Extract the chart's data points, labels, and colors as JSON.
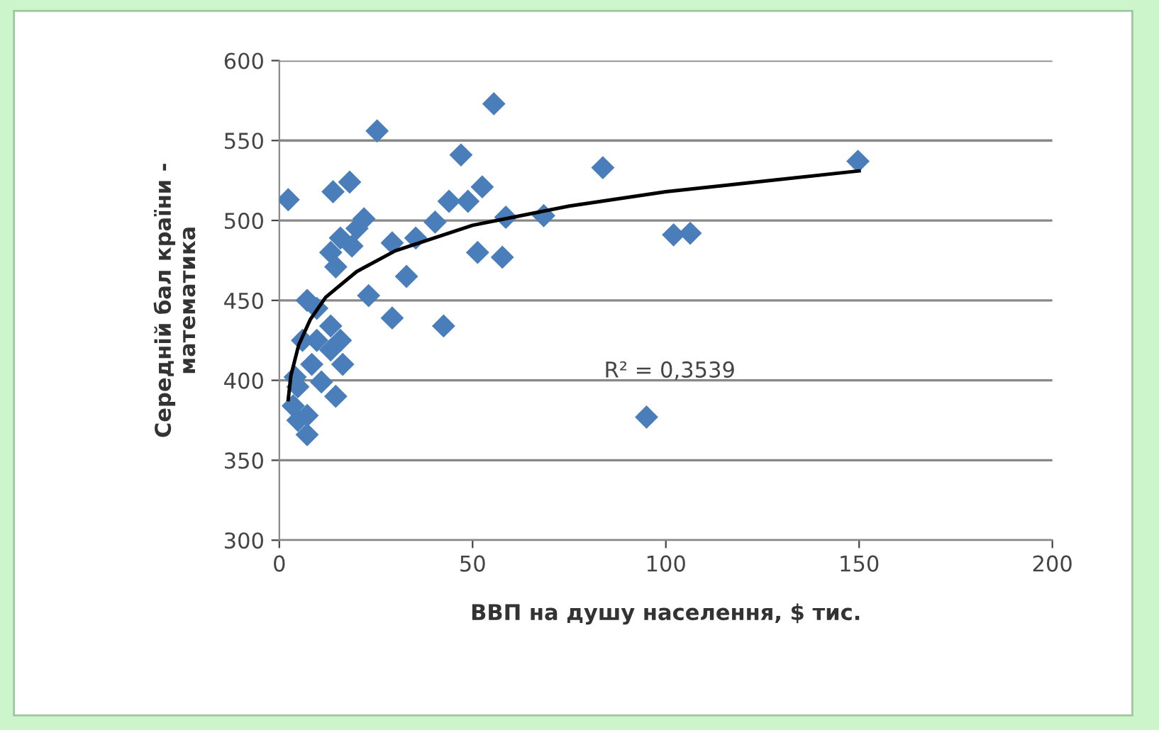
{
  "chart_data": {
    "type": "scatter",
    "xlabel": "ВВП на душу населення, $ тис.",
    "ylabel": "Середній бал країни -\nматематика",
    "xlim": [
      0,
      200
    ],
    "xticks": [
      0,
      50,
      100,
      150,
      200
    ],
    "ylim": [
      300,
      600
    ],
    "yticks": [
      300,
      350,
      400,
      450,
      500,
      550,
      600
    ],
    "grid": "y",
    "marker": "diamond",
    "annotations": [
      "R² = 0,3539"
    ],
    "series": [
      {
        "color": "#4a7ebb",
        "x": [
          55.5,
          25.3,
          2.3,
          13.9,
          18.2,
          47,
          68.4,
          58.6,
          51.3,
          57.7,
          52.5,
          48.8,
          43.9,
          40.3,
          35.3,
          29.2,
          32.9,
          23.1,
          29.2,
          42.5,
          21.9,
          20.1,
          15.8,
          13.3,
          14.6,
          18.8,
          7.2,
          9.7,
          13.3,
          15.8,
          13.3,
          16.4,
          9.7,
          6,
          8.4,
          14.6,
          10.9,
          4.8,
          3.6,
          7.2,
          7.2,
          4.8,
          4.1,
          83.7,
          149.7,
          102,
          106.3,
          95
        ],
        "values": [
          573,
          556,
          513,
          518,
          524,
          541,
          503,
          502,
          480,
          477,
          521,
          512,
          512,
          499,
          489,
          486,
          465,
          453,
          439,
          434,
          501,
          495,
          489,
          480,
          471,
          484,
          450,
          445,
          434,
          425,
          419,
          410,
          425,
          425,
          410,
          390,
          399,
          396,
          384,
          378,
          366,
          375,
          402,
          533,
          537,
          491,
          492,
          377
        ]
      },
      {
        "type": "line",
        "color": "#000000",
        "line_style": "solid",
        "marker": "none",
        "x": [
          2.3,
          3,
          5,
          8,
          12,
          20,
          30,
          50,
          75,
          100,
          150
        ],
        "values": [
          388,
          403,
          422,
          438,
          452,
          468,
          481,
          497,
          509,
          518,
          531
        ]
      }
    ]
  }
}
